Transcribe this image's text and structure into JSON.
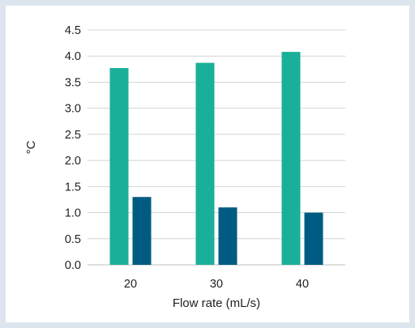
{
  "chart_data": {
    "type": "bar",
    "categories": [
      "20",
      "30",
      "40"
    ],
    "series": [
      {
        "values": [
          3.77,
          3.87,
          4.08
        ],
        "color": "#1aaf99"
      },
      {
        "values": [
          1.3,
          1.1,
          1.0
        ],
        "color": "#005b82"
      }
    ],
    "xlabel": "Flow rate (mL/s)",
    "ylabel": "°C",
    "ylim": [
      0,
      4.5
    ],
    "yticks": [
      "0.0",
      "0.5",
      "1.0",
      "1.5",
      "2.0",
      "2.5",
      "3.0",
      "3.5",
      "4.0",
      "4.5"
    ],
    "grid": true,
    "legend": "none"
  }
}
